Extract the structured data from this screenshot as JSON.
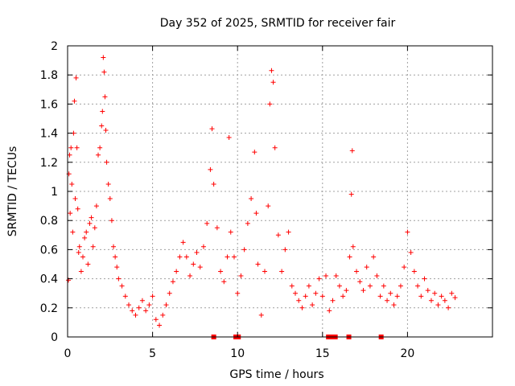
{
  "chart_data": {
    "type": "scatter",
    "title": "Day 352 of 2025, SRMTID for receiver fair",
    "xlabel": "GPS time / hours",
    "ylabel": "SRMTID / TECUs",
    "xlim": [
      0,
      25
    ],
    "ylim": [
      0,
      2
    ],
    "xticks": [
      0,
      5,
      10,
      15,
      20
    ],
    "yticks": [
      0,
      0.2,
      0.4,
      0.6,
      0.8,
      1,
      1.2,
      1.4,
      1.6,
      1.8,
      2
    ],
    "xtick_labels": [
      "0",
      "5",
      "10",
      "15",
      "20"
    ],
    "ytick_labels": [
      "0",
      "0.2",
      "0.4",
      "0.6",
      "0.8",
      "1",
      "1.2",
      "1.4",
      "1.6",
      "1.8",
      "2"
    ],
    "grid": true,
    "marker": "+",
    "color": "#ff0000",
    "series": [
      {
        "name": "SRMTID",
        "points": [
          [
            0.05,
            0.39
          ],
          [
            0.08,
            1.12
          ],
          [
            0.12,
            1.25
          ],
          [
            0.15,
            0.85
          ],
          [
            0.2,
            1.3
          ],
          [
            0.25,
            1.05
          ],
          [
            0.3,
            0.72
          ],
          [
            0.35,
            1.4
          ],
          [
            0.4,
            1.62
          ],
          [
            0.45,
            0.95
          ],
          [
            0.5,
            1.78
          ],
          [
            0.55,
            1.3
          ],
          [
            0.6,
            0.88
          ],
          [
            0.65,
            0.58
          ],
          [
            0.7,
            0.62
          ],
          [
            0.8,
            0.45
          ],
          [
            0.9,
            0.55
          ],
          [
            1.0,
            0.68
          ],
          [
            1.1,
            0.72
          ],
          [
            1.2,
            0.5
          ],
          [
            1.3,
            0.78
          ],
          [
            1.4,
            0.82
          ],
          [
            1.5,
            0.62
          ],
          [
            1.6,
            0.75
          ],
          [
            1.7,
            0.9
          ],
          [
            1.8,
            1.25
          ],
          [
            1.9,
            1.3
          ],
          [
            2.0,
            1.45
          ],
          [
            2.05,
            1.55
          ],
          [
            2.1,
            1.92
          ],
          [
            2.15,
            1.82
          ],
          [
            2.2,
            1.65
          ],
          [
            2.25,
            1.42
          ],
          [
            2.3,
            1.2
          ],
          [
            2.4,
            1.05
          ],
          [
            2.5,
            0.95
          ],
          [
            2.6,
            0.8
          ],
          [
            2.7,
            0.62
          ],
          [
            2.8,
            0.55
          ],
          [
            2.9,
            0.48
          ],
          [
            3.0,
            0.4
          ],
          [
            3.2,
            0.35
          ],
          [
            3.4,
            0.28
          ],
          [
            3.6,
            0.22
          ],
          [
            3.8,
            0.18
          ],
          [
            4.0,
            0.15
          ],
          [
            4.2,
            0.2
          ],
          [
            4.4,
            0.25
          ],
          [
            4.6,
            0.18
          ],
          [
            4.8,
            0.22
          ],
          [
            5.0,
            0.28
          ],
          [
            5.2,
            0.12
          ],
          [
            5.4,
            0.08
          ],
          [
            5.6,
            0.15
          ],
          [
            5.8,
            0.22
          ],
          [
            6.0,
            0.3
          ],
          [
            6.2,
            0.38
          ],
          [
            6.4,
            0.45
          ],
          [
            6.6,
            0.55
          ],
          [
            6.8,
            0.65
          ],
          [
            7.0,
            0.55
          ],
          [
            7.2,
            0.42
          ],
          [
            7.4,
            0.5
          ],
          [
            7.6,
            0.58
          ],
          [
            7.8,
            0.48
          ],
          [
            8.0,
            0.62
          ],
          [
            8.2,
            0.78
          ],
          [
            8.4,
            1.15
          ],
          [
            8.5,
            1.43
          ],
          [
            8.6,
            1.05
          ],
          [
            8.8,
            0.75
          ],
          [
            9.0,
            0.45
          ],
          [
            9.2,
            0.38
          ],
          [
            9.4,
            0.55
          ],
          [
            9.5,
            1.37
          ],
          [
            9.6,
            0.72
          ],
          [
            9.8,
            0.55
          ],
          [
            10.0,
            0.3
          ],
          [
            10.2,
            0.42
          ],
          [
            10.4,
            0.6
          ],
          [
            10.6,
            0.78
          ],
          [
            10.8,
            0.95
          ],
          [
            11.0,
            1.27
          ],
          [
            11.1,
            0.85
          ],
          [
            11.2,
            0.5
          ],
          [
            11.4,
            0.15
          ],
          [
            11.6,
            0.45
          ],
          [
            11.8,
            0.9
          ],
          [
            11.9,
            1.6
          ],
          [
            12.0,
            1.83
          ],
          [
            12.1,
            1.75
          ],
          [
            12.2,
            1.3
          ],
          [
            12.4,
            0.7
          ],
          [
            12.6,
            0.45
          ],
          [
            12.8,
            0.6
          ],
          [
            13.0,
            0.72
          ],
          [
            13.2,
            0.35
          ],
          [
            13.4,
            0.3
          ],
          [
            13.6,
            0.25
          ],
          [
            13.8,
            0.2
          ],
          [
            14.0,
            0.28
          ],
          [
            14.2,
            0.35
          ],
          [
            14.4,
            0.22
          ],
          [
            14.6,
            0.3
          ],
          [
            14.8,
            0.4
          ],
          [
            15.0,
            0.28
          ],
          [
            15.2,
            0.42
          ],
          [
            15.4,
            0.18
          ],
          [
            15.6,
            0.25
          ],
          [
            15.8,
            0.42
          ],
          [
            16.0,
            0.35
          ],
          [
            16.2,
            0.28
          ],
          [
            16.4,
            0.32
          ],
          [
            16.6,
            0.55
          ],
          [
            16.7,
            0.98
          ],
          [
            16.75,
            1.28
          ],
          [
            16.8,
            0.62
          ],
          [
            17.0,
            0.45
          ],
          [
            17.2,
            0.38
          ],
          [
            17.4,
            0.32
          ],
          [
            17.6,
            0.48
          ],
          [
            17.8,
            0.35
          ],
          [
            18.0,
            0.55
          ],
          [
            18.2,
            0.42
          ],
          [
            18.4,
            0.28
          ],
          [
            18.6,
            0.35
          ],
          [
            18.8,
            0.25
          ],
          [
            19.0,
            0.3
          ],
          [
            19.2,
            0.22
          ],
          [
            19.4,
            0.28
          ],
          [
            19.6,
            0.35
          ],
          [
            19.8,
            0.48
          ],
          [
            20.0,
            0.72
          ],
          [
            20.2,
            0.58
          ],
          [
            20.4,
            0.45
          ],
          [
            20.6,
            0.35
          ],
          [
            20.8,
            0.28
          ],
          [
            21.0,
            0.4
          ],
          [
            21.2,
            0.32
          ],
          [
            21.4,
            0.25
          ],
          [
            21.6,
            0.3
          ],
          [
            21.8,
            0.22
          ],
          [
            22.0,
            0.28
          ],
          [
            22.2,
            0.25
          ],
          [
            22.4,
            0.2
          ],
          [
            22.6,
            0.3
          ],
          [
            22.8,
            0.27
          ]
        ]
      },
      {
        "name": "flags",
        "marker": "square",
        "points": [
          [
            8.6,
            0
          ],
          [
            9.9,
            0
          ],
          [
            10.05,
            0
          ],
          [
            15.35,
            0
          ],
          [
            15.6,
            0
          ],
          [
            15.75,
            0
          ],
          [
            16.55,
            0
          ],
          [
            18.45,
            0
          ]
        ]
      }
    ]
  }
}
